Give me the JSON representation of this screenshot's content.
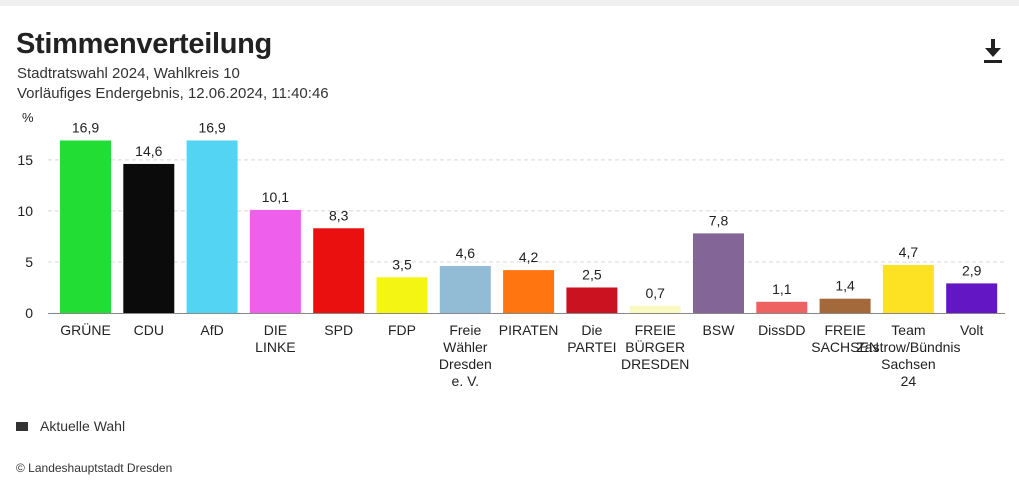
{
  "header": {
    "title": "Stimmenverteilung",
    "subtitle_1": "Stadtratswahl 2024, Wahlkreis 10",
    "subtitle_2": "Vorläufiges Endergebnis, 12.06.2024, 11:40:46",
    "download_icon": "download-icon"
  },
  "legend": {
    "label": "Aktuelle Wahl",
    "color": "#333333"
  },
  "footer": {
    "credit": "© Landeshauptstadt Dresden"
  },
  "chart_data": {
    "type": "bar",
    "ylabel": "%",
    "ylim": [
      0,
      19.2
    ],
    "yticks": [
      0,
      5,
      10,
      15
    ],
    "grid": true,
    "legend_position": "bottom-left",
    "series": [
      {
        "name": "Aktuelle Wahl"
      }
    ],
    "categories": [
      {
        "lines": [
          "GRÜNE"
        ],
        "value": 16.9,
        "label": "16,9",
        "color": "#22dd33"
      },
      {
        "lines": [
          "CDU"
        ],
        "value": 14.6,
        "label": "14,6",
        "color": "#0b0b0b"
      },
      {
        "lines": [
          "AfD"
        ],
        "value": 16.9,
        "label": "16,9",
        "color": "#52d4f2"
      },
      {
        "lines": [
          "DIE",
          "LINKE"
        ],
        "value": 10.1,
        "label": "10,1",
        "color": "#ee5fec"
      },
      {
        "lines": [
          "SPD"
        ],
        "value": 8.3,
        "label": "8,3",
        "color": "#ea1010"
      },
      {
        "lines": [
          "FDP"
        ],
        "value": 3.5,
        "label": "3,5",
        "color": "#f5f514"
      },
      {
        "lines": [
          "Freie",
          "Wähler",
          "Dresden",
          "e. V."
        ],
        "value": 4.6,
        "label": "4,6",
        "color": "#92bcd6"
      },
      {
        "lines": [
          "PIRATEN"
        ],
        "value": 4.2,
        "label": "4,2",
        "color": "#ff7510"
      },
      {
        "lines": [
          "Die",
          "PARTEI"
        ],
        "value": 2.5,
        "label": "2,5",
        "color": "#cb1220"
      },
      {
        "lines": [
          "FREIE",
          "BÜRGER",
          "DRESDEN"
        ],
        "value": 0.7,
        "label": "0,7",
        "color": "#f9f9c2"
      },
      {
        "lines": [
          "BSW"
        ],
        "value": 7.8,
        "label": "7,8",
        "color": "#836598"
      },
      {
        "lines": [
          "DissDD"
        ],
        "value": 1.1,
        "label": "1,1",
        "color": "#ee6262"
      },
      {
        "lines": [
          "FREIE",
          "SACHSEN"
        ],
        "value": 1.4,
        "label": "1,4",
        "color": "#a4693a"
      },
      {
        "lines": [
          "Team",
          "Zastrow/Bündnis",
          "Sachsen",
          "24"
        ],
        "value": 4.7,
        "label": "4,7",
        "color": "#fde224"
      },
      {
        "lines": [
          "Volt"
        ],
        "value": 2.9,
        "label": "2,9",
        "color": "#6316c4"
      }
    ]
  }
}
